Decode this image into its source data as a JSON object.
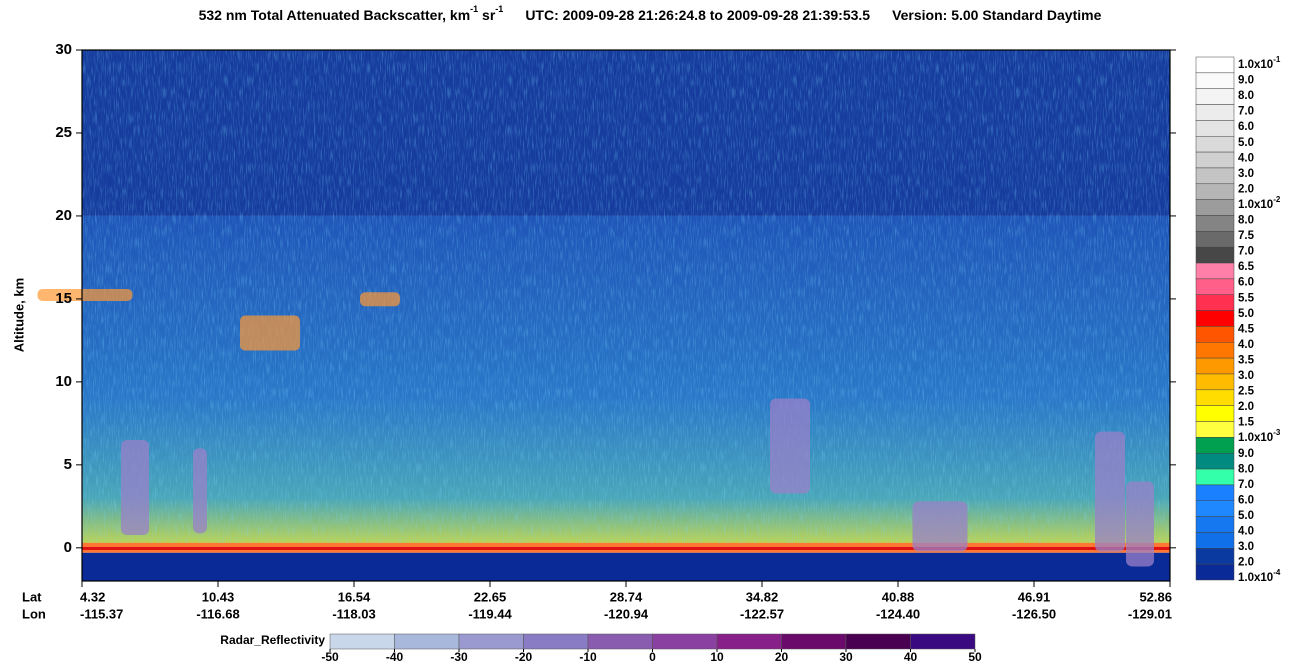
{
  "chart_data": {
    "type": "heatmap",
    "title": {
      "prefix": "532 nm Total Attenuated Backscatter, km",
      "sup1": "-1",
      "mid": " sr",
      "sup2": "-1",
      "utc": "UTC:  2009-09-28 21:26:24.8  to  2009-09-28 21:39:53.5",
      "version": "Version: 5.00  Standard  Daytime"
    },
    "y_label": "Altitude, km",
    "ylim": [
      -2,
      30
    ],
    "yticks": [
      0,
      5,
      10,
      15,
      20,
      25,
      30
    ],
    "lat_label": "Lat",
    "lon_label": "Lon",
    "lat_ticks": [
      4.32,
      10.43,
      16.54,
      22.65,
      28.74,
      34.82,
      40.88,
      46.91,
      52.86
    ],
    "lon_ticks": [
      -115.37,
      -116.68,
      -118.03,
      -119.44,
      -120.94,
      -122.57,
      -124.4,
      -126.5,
      -129.01
    ],
    "lon_tick_labels": [
      "-115.37",
      "-116.68",
      "-118.03",
      "-119.44",
      "-120.94",
      "-122.57",
      "-124.40",
      "-126.50",
      "-129.01"
    ],
    "colorbar": {
      "labels": [
        {
          "text": "1.0x10",
          "exp": "-1"
        },
        "9.0",
        "8.0",
        "7.0",
        "6.0",
        "5.0",
        "4.0",
        "3.0",
        "2.0",
        {
          "text": "1.0x10",
          "exp": "-2"
        },
        "8.0",
        "7.5",
        "7.0",
        "6.5",
        "6.0",
        "5.5",
        "5.0",
        "4.5",
        "4.0",
        "3.5",
        "3.0",
        "2.5",
        "2.0",
        "1.5",
        {
          "text": "1.0x10",
          "exp": "-3"
        },
        "9.0",
        "8.0",
        "7.0",
        "6.0",
        "5.0",
        "4.0",
        "3.0",
        "2.0",
        {
          "text": "1.0x10",
          "exp": "-4"
        }
      ],
      "colors": [
        "#ffffff",
        "#fafafa",
        "#f4f4f4",
        "#ececec",
        "#e4e4e4",
        "#dadada",
        "#d0d0d0",
        "#c4c4c4",
        "#b6b6b6",
        "#9c9c9c",
        "#848484",
        "#6a6a6a",
        "#474747",
        "#ff7fa8",
        "#ff5f88",
        "#ff3050",
        "#ff0000",
        "#ff5500",
        "#ff7700",
        "#ff9900",
        "#ffbb00",
        "#ffdd00",
        "#ffff00",
        "#ffff40",
        "#00a050",
        "#008a80",
        "#33ffaa",
        "#1a80ff",
        "#2088ff",
        "#1578f0",
        "#1070e8",
        "#0a3aa0",
        "#0a2a98"
      ]
    },
    "radar": {
      "label": "Radar_Reflectivity",
      "ticks": [
        -50,
        -40,
        -30,
        -20,
        -10,
        0,
        10,
        20,
        30,
        40,
        50
      ],
      "colors": [
        "#c8d8ea",
        "#a8b8dc",
        "#9a9ad0",
        "#8a7cc4",
        "#8a5cb0",
        "#8a40a0",
        "#88208a",
        "#6a0a6a",
        "#4a0050",
        "#3a0a80"
      ]
    }
  }
}
